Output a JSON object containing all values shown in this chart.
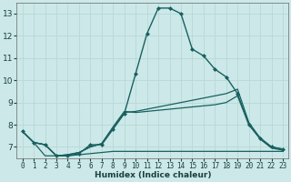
{
  "xlabel": "Humidex (Indice chaleur)",
  "bg_color": "#cce8e8",
  "grid_color": "#b8d8d8",
  "line_color": "#1a6060",
  "xlim": [
    -0.5,
    23.5
  ],
  "ylim": [
    6.5,
    13.5
  ],
  "yticks": [
    7,
    8,
    9,
    10,
    11,
    12,
    13
  ],
  "xticks": [
    0,
    1,
    2,
    3,
    4,
    5,
    6,
    7,
    8,
    9,
    10,
    11,
    12,
    13,
    14,
    15,
    16,
    17,
    18,
    19,
    20,
    21,
    22,
    23
  ],
  "series": [
    {
      "x": [
        0,
        1,
        2,
        3,
        4,
        5,
        6,
        7,
        8,
        9,
        10,
        11,
        12,
        13,
        14,
        15,
        16,
        17,
        18,
        19,
        20,
        21,
        22,
        23
      ],
      "y": [
        7.7,
        7.2,
        7.1,
        6.6,
        6.6,
        6.7,
        7.1,
        7.1,
        7.8,
        8.5,
        10.3,
        12.1,
        13.25,
        13.25,
        13.0,
        11.4,
        11.1,
        10.5,
        10.15,
        9.4,
        8.0,
        7.4,
        7.0,
        6.9
      ],
      "marker": "D",
      "markersize": 2.0,
      "linewidth": 1.0
    },
    {
      "x": [
        0,
        1,
        2,
        3,
        4,
        5,
        6,
        7,
        8,
        9,
        10,
        11,
        12,
        13,
        14,
        15,
        16,
        17,
        18,
        19,
        20,
        21,
        22,
        23
      ],
      "y": [
        7.7,
        7.2,
        7.1,
        6.6,
        6.65,
        6.75,
        7.0,
        7.15,
        7.9,
        8.6,
        8.55,
        8.6,
        8.65,
        8.7,
        8.75,
        8.8,
        8.85,
        8.9,
        9.0,
        9.3,
        8.0,
        7.35,
        6.95,
        6.85
      ],
      "marker": null,
      "linewidth": 0.9
    },
    {
      "x": [
        0,
        1,
        2,
        3,
        4,
        5,
        6,
        7,
        8,
        9,
        10,
        11,
        12,
        13,
        14,
        15,
        16,
        17,
        18,
        19,
        20,
        21,
        22,
        23
      ],
      "y": [
        7.7,
        7.2,
        7.1,
        6.6,
        6.65,
        6.75,
        7.0,
        7.15,
        7.85,
        8.55,
        8.6,
        8.7,
        8.8,
        8.9,
        9.0,
        9.1,
        9.2,
        9.3,
        9.4,
        9.6,
        8.1,
        7.4,
        7.0,
        6.9
      ],
      "marker": null,
      "linewidth": 0.9
    },
    {
      "x": [
        0,
        1,
        2,
        3,
        4,
        5,
        6,
        7,
        8,
        9,
        10,
        11,
        12,
        13,
        14,
        15,
        16,
        17,
        18,
        19,
        20,
        21,
        22,
        23
      ],
      "y": [
        7.7,
        7.2,
        6.6,
        6.6,
        6.6,
        6.65,
        6.7,
        6.75,
        6.8,
        6.8,
        6.8,
        6.8,
        6.8,
        6.8,
        6.8,
        6.8,
        6.8,
        6.8,
        6.8,
        6.8,
        6.8,
        6.8,
        6.8,
        6.8
      ],
      "marker": null,
      "linewidth": 0.9
    }
  ]
}
